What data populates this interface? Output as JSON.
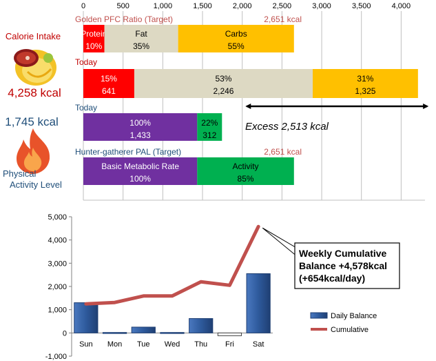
{
  "left_panel": {
    "intake_label": "Calorie Intake",
    "intake_value": "4,258 kcal",
    "expenditure_value": "1,745 kcal",
    "activity_label_line1": "Physical",
    "activity_label_line2": "Activity Level",
    "intake_icon": "food-plate-icon",
    "expenditure_icon": "flame-icon"
  },
  "top_chart": {
    "type": "bar",
    "orientation": "horizontal-stacked",
    "x_ticks": [
      "0",
      "500",
      "1,000",
      "1,500",
      "2,000",
      "2,500",
      "3,000",
      "3,500",
      "4,000"
    ],
    "xlim": [
      0,
      4300
    ],
    "rows": [
      {
        "label": "Golden PFC Ratio (Target)",
        "total_label": "2,651 kcal",
        "segments": [
          {
            "name": "Protein",
            "kcal": 265,
            "pct_label": "10%",
            "value_label": "",
            "color": "#ff0000"
          },
          {
            "name": "Fat",
            "kcal": 928,
            "pct_label": "35%",
            "value_label": "",
            "color": "#ddd9c3"
          },
          {
            "name": "Carbs",
            "kcal": 1458,
            "pct_label": "55%",
            "value_label": "",
            "color": "#ffc000"
          }
        ]
      },
      {
        "label": "Today",
        "total_label": "",
        "segments": [
          {
            "name": "",
            "kcal": 641,
            "pct_label": "15%",
            "value_label": "641",
            "color": "#ff0000"
          },
          {
            "name": "",
            "kcal": 2246,
            "pct_label": "53%",
            "value_label": "2,246",
            "color": "#ddd9c3"
          },
          {
            "name": "",
            "kcal": 1325,
            "pct_label": "31%",
            "value_label": "1,325",
            "color": "#ffc000"
          }
        ]
      },
      {
        "label": "Today",
        "total_label": "",
        "segments": [
          {
            "name": "",
            "kcal": 1433,
            "pct_label": "100%",
            "value_label": "1,433",
            "color": "#7030a0"
          },
          {
            "name": "",
            "kcal": 312,
            "pct_label": "22%",
            "value_label": "312",
            "color": "#00b050"
          }
        ]
      },
      {
        "label": "Hunter-gatherer  PAL (Target)",
        "total_label": "2,651 kcal",
        "segments": [
          {
            "name": "Basic Metabolic Rate",
            "kcal": 1433,
            "pct_label": "100%",
            "value_label": "",
            "color": "#7030a0"
          },
          {
            "name": "Activity",
            "kcal": 1218,
            "pct_label": "85%",
            "value_label": "",
            "color": "#00b050"
          }
        ]
      }
    ],
    "excess": {
      "label": "Excess 2,513 kcal",
      "from": 1745,
      "to": 4258
    }
  },
  "bottom_chart": {
    "type": "bar",
    "categories": [
      "Sun",
      "Mon",
      "Tue",
      "Wed",
      "Thu",
      "Fri",
      "Sat"
    ],
    "ylim": [
      -1000,
      5000
    ],
    "y_ticks": [
      "5,000",
      "4,000",
      "3,000",
      "2,000",
      "1,000",
      "0",
      "-1,000"
    ],
    "series": [
      {
        "name": "Daily Balance",
        "kind": "bar",
        "color": "#2e5a9c",
        "values": [
          1300,
          20,
          250,
          20,
          620,
          -120,
          2550
        ]
      },
      {
        "name": "Cumulative",
        "kind": "line",
        "color": "#c0504d",
        "values": [
          1250,
          1310,
          1590,
          1590,
          2200,
          2050,
          4578
        ]
      }
    ],
    "callout": {
      "line1": "Weekly Cumulative",
      "line2": "Balance +4,578kcal",
      "line3": "(+654kcal/day)"
    }
  }
}
